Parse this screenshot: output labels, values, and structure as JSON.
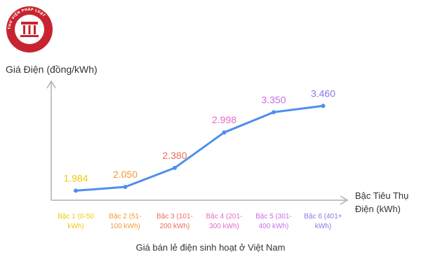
{
  "logo": {
    "ring_text": "THƯ VIỆN PHÁP LUẬT",
    "colors": {
      "ring": "#c8242f",
      "inner": "#ffffff"
    }
  },
  "chart_data": {
    "type": "line",
    "caption": "Giá bán lẻ điện sinh hoạt ở Việt Nam",
    "ylabel": "Giá Điện (đồng/kWh)",
    "xlabel_lines": [
      "Bậc Tiêu Thụ",
      "Điện (kWh)"
    ],
    "categories": [
      [
        "Bậc 1 (0-50",
        "kWh)"
      ],
      [
        "Bậc 2 (51-",
        "100 kWh)"
      ],
      [
        "Bậc 3 (101-",
        "200 kWh)"
      ],
      [
        "Bậc 4 (201-",
        "300 kWh)"
      ],
      [
        "Bậc 5 (301-",
        "400 kWh)"
      ],
      [
        "Bậc 6 (401+",
        "kWh)"
      ]
    ],
    "values": [
      1984,
      2050,
      2380,
      2998,
      3350,
      3460
    ],
    "value_labels": [
      "1.984",
      "2.050",
      "2.380",
      "2.998",
      "3.350",
      "3.460"
    ],
    "category_colors": [
      "#f2c811",
      "#f39a35",
      "#ee6b5e",
      "#e56bc7",
      "#c96ee6",
      "#8e75e6"
    ],
    "line_color": "#4f8ef0",
    "axis_color": "#b0b0b0",
    "ylim": [
      1800,
      3500
    ],
    "grid": false,
    "legend": "none"
  }
}
